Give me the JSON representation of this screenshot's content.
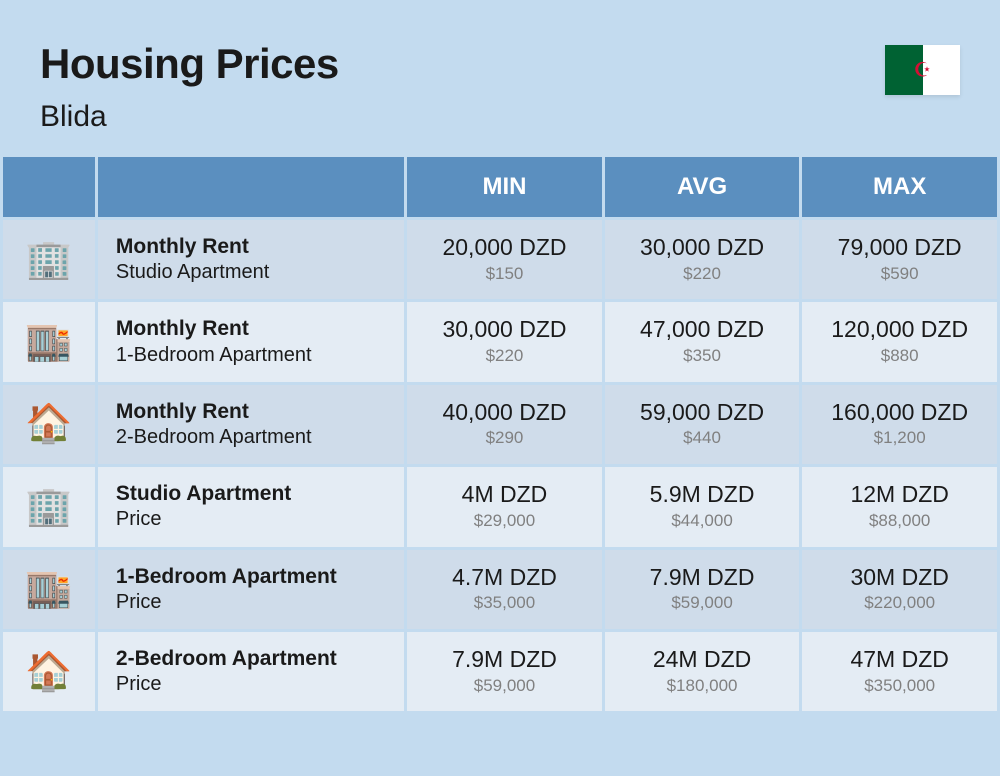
{
  "header": {
    "title": "Housing Prices",
    "city": "Blida"
  },
  "columns": {
    "blank1": "",
    "blank2": "",
    "min": "MIN",
    "avg": "AVG",
    "max": "MAX"
  },
  "rows": [
    {
      "icon": "🏢",
      "label_title": "Monthly Rent",
      "label_sub": "Studio Apartment",
      "min_main": "20,000 DZD",
      "min_sub": "$150",
      "avg_main": "30,000 DZD",
      "avg_sub": "$220",
      "max_main": "79,000 DZD",
      "max_sub": "$590"
    },
    {
      "icon": "🏬",
      "label_title": "Monthly Rent",
      "label_sub": "1-Bedroom Apartment",
      "min_main": "30,000 DZD",
      "min_sub": "$220",
      "avg_main": "47,000 DZD",
      "avg_sub": "$350",
      "max_main": "120,000 DZD",
      "max_sub": "$880"
    },
    {
      "icon": "🏠",
      "label_title": "Monthly Rent",
      "label_sub": "2-Bedroom Apartment",
      "min_main": "40,000 DZD",
      "min_sub": "$290",
      "avg_main": "59,000 DZD",
      "avg_sub": "$440",
      "max_main": "160,000 DZD",
      "max_sub": "$1,200"
    },
    {
      "icon": "🏢",
      "label_title": "Studio Apartment",
      "label_sub": "Price",
      "min_main": "4M DZD",
      "min_sub": "$29,000",
      "avg_main": "5.9M DZD",
      "avg_sub": "$44,000",
      "max_main": "12M DZD",
      "max_sub": "$88,000"
    },
    {
      "icon": "🏬",
      "label_title": "1-Bedroom Apartment",
      "label_sub": "Price",
      "min_main": "4.7M DZD",
      "min_sub": "$35,000",
      "avg_main": "7.9M DZD",
      "avg_sub": "$59,000",
      "max_main": "30M DZD",
      "max_sub": "$220,000"
    },
    {
      "icon": "🏠",
      "label_title": "2-Bedroom Apartment",
      "label_sub": "Price",
      "min_main": "7.9M DZD",
      "min_sub": "$59,000",
      "avg_main": "24M DZD",
      "avg_sub": "$180,000",
      "max_main": "47M DZD",
      "max_sub": "$350,000"
    }
  ],
  "styling": {
    "page_bg": "#c3dbef",
    "header_bg": "#5b8fbf",
    "header_text": "#ffffff",
    "row_odd_bg": "#cfdcea",
    "row_even_bg": "#e4ecf4",
    "primary_text": "#1a1a1a",
    "secondary_text": "#808080",
    "flag_green": "#006233",
    "flag_white": "#ffffff",
    "flag_red": "#d21034",
    "title_fontsize": 42,
    "subtitle_fontsize": 30,
    "col_header_fontsize": 24,
    "label_title_fontsize": 21,
    "label_sub_fontsize": 20,
    "val_main_fontsize": 23,
    "val_sub_fontsize": 17
  }
}
